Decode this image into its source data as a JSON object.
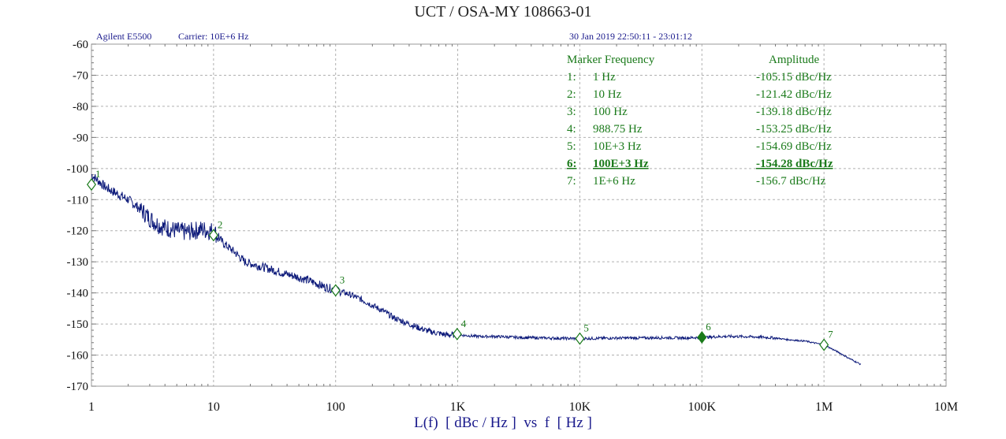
{
  "header": {
    "title": "UCT / OSA-MY 108663-01",
    "instrument": "Agilent E5500",
    "carrier": "Carrier: 10E+6 Hz",
    "datetime": "30 Jan 2019  22:50:11 - 23:01:12"
  },
  "marker_table": {
    "col_frequency": "Marker Frequency",
    "col_amplitude": "Amplitude",
    "rows": [
      {
        "index": "1:",
        "freq": "1 Hz",
        "amp": "-105.15 dBc/Hz",
        "selected": false
      },
      {
        "index": "2:",
        "freq": "10 Hz",
        "amp": "-121.42 dBc/Hz",
        "selected": false
      },
      {
        "index": "3:",
        "freq": "100 Hz",
        "amp": "-139.18 dBc/Hz",
        "selected": false
      },
      {
        "index": "4:",
        "freq": "988.75 Hz",
        "amp": "-153.25 dBc/Hz",
        "selected": false
      },
      {
        "index": "5:",
        "freq": "10E+3 Hz",
        "amp": "-154.69 dBc/Hz",
        "selected": false
      },
      {
        "index": "6:",
        "freq": "100E+3 Hz",
        "amp": "-154.28 dBc/Hz",
        "selected": true
      },
      {
        "index": "7:",
        "freq": "1E+6 Hz",
        "amp": "-156.7 dBc/Hz",
        "selected": false
      }
    ]
  },
  "colors": {
    "trace": "#0d1a7a",
    "marker": "#1a7a1a",
    "grid": "#b0b0b0",
    "axis_text": "#111111",
    "label_text": "#1a1a8c"
  },
  "chart_data": {
    "type": "line",
    "title": "UCT / OSA-MY 108663-01",
    "xlabel": "L(f)  [ dBc / Hz ]  vs  f  [ Hz ]",
    "ylabel": "",
    "xscale": "log",
    "xlim": [
      1,
      10000000
    ],
    "ylim": [
      -170,
      -60
    ],
    "grid": true,
    "x_ticks": [
      1,
      10,
      100,
      1000,
      10000,
      100000,
      1000000,
      10000000
    ],
    "x_tick_labels": [
      "1",
      "10",
      "100",
      "1K",
      "10K",
      "100K",
      "1M",
      "10M"
    ],
    "y_ticks": [
      -60,
      -70,
      -80,
      -90,
      -100,
      -110,
      -120,
      -130,
      -140,
      -150,
      -160,
      -170
    ],
    "y_tick_labels": [
      "-60",
      "-70",
      "-80",
      "-90",
      "-100",
      "-110",
      "-120",
      "-130",
      "-140",
      "-150",
      "-160",
      "-170"
    ],
    "series": [
      {
        "x": [
          1,
          1.3,
          1.6,
          2,
          2.5,
          3,
          3.5,
          4,
          5,
          6,
          7,
          8,
          9,
          10,
          12,
          15,
          18,
          22,
          27,
          33,
          40,
          50,
          60,
          70,
          80,
          100,
          130,
          160,
          200,
          250,
          300,
          400,
          500,
          600,
          700,
          800,
          1000,
          1500,
          2000,
          3000,
          5000,
          7000,
          10000,
          20000,
          30000,
          50000,
          70000,
          100000,
          150000,
          200000,
          300000,
          400000,
          500000,
          700000,
          1000000,
          1300000,
          1600000,
          2000000
        ],
        "y": [
          -102,
          -106,
          -108,
          -110,
          -113,
          -116,
          -118,
          -119,
          -120,
          -120.5,
          -120,
          -119.5,
          -120,
          -120,
          -124,
          -127,
          -130,
          -131,
          -132,
          -133,
          -134,
          -135,
          -136,
          -137,
          -138,
          -139,
          -140.5,
          -142,
          -144,
          -146,
          -148,
          -150,
          -151.5,
          -152.5,
          -153,
          -153.5,
          -153.5,
          -154,
          -154,
          -154.3,
          -154.5,
          -154.6,
          -154.7,
          -154.5,
          -154.5,
          -154.4,
          -154.5,
          -154.3,
          -154,
          -154,
          -154.2,
          -154.5,
          -155,
          -155.5,
          -156.7,
          -159,
          -161,
          -163
        ]
      }
    ],
    "markers": [
      {
        "label": "1",
        "x": 1,
        "y": -105.15
      },
      {
        "label": "2",
        "x": 10,
        "y": -121.42
      },
      {
        "label": "3",
        "x": 100,
        "y": -139.18
      },
      {
        "label": "4",
        "x": 988.75,
        "y": -153.25
      },
      {
        "label": "5",
        "x": 10000,
        "y": -154.69
      },
      {
        "label": "6",
        "x": 100000,
        "y": -154.28,
        "active": true
      },
      {
        "label": "7",
        "x": 1000000,
        "y": -156.7
      }
    ]
  }
}
